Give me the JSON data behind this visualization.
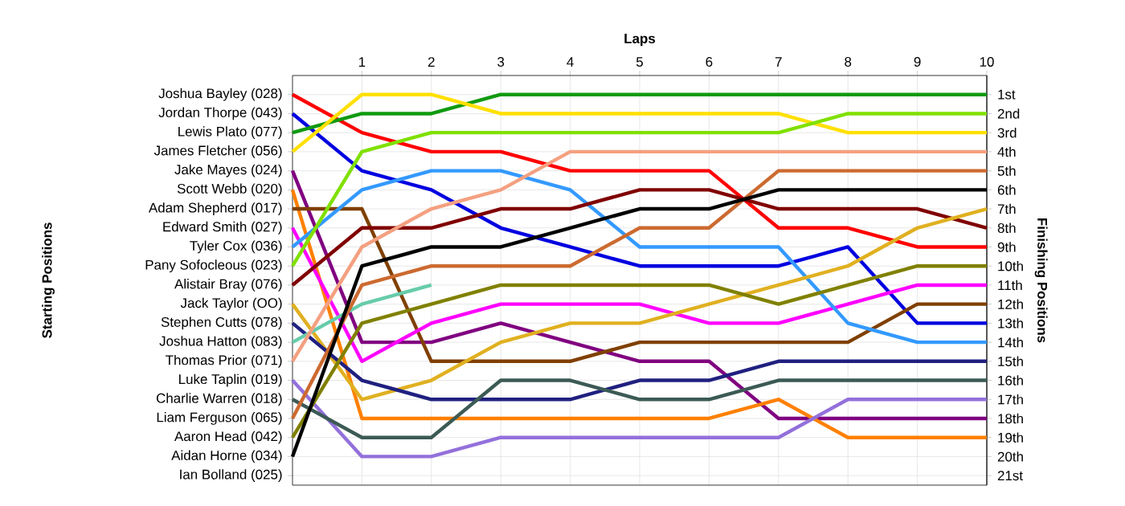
{
  "chart_data": {
    "type": "line",
    "xlabel": "Laps",
    "y2label": "Finishing Positions",
    "x": [
      0,
      1,
      2,
      3,
      4,
      5,
      6,
      7,
      8,
      9,
      10
    ],
    "xlim": [
      0,
      10
    ],
    "xticks": [
      1,
      2,
      3,
      4,
      5,
      6,
      7,
      8,
      9,
      10
    ],
    "y2lim": [
      21.5,
      0
    ],
    "y2ticks": [
      {
        "value": 1,
        "label": "1st"
      },
      {
        "value": 2,
        "label": "2nd"
      },
      {
        "value": 3,
        "label": "3rd"
      },
      {
        "value": 4,
        "label": "4th"
      },
      {
        "value": 5,
        "label": "5th"
      },
      {
        "value": 6,
        "label": "6th"
      },
      {
        "value": 7,
        "label": "7th"
      },
      {
        "value": 8,
        "label": "8th"
      },
      {
        "value": 9,
        "label": "9th"
      },
      {
        "value": 10,
        "label": "10th"
      },
      {
        "value": 11,
        "label": "11th"
      },
      {
        "value": 12,
        "label": "12th"
      },
      {
        "value": 13,
        "label": "13th"
      },
      {
        "value": 14,
        "label": "14th"
      },
      {
        "value": 15,
        "label": "15th"
      },
      {
        "value": 16,
        "label": "16th"
      },
      {
        "value": 17,
        "label": "17th"
      },
      {
        "value": 18,
        "label": "18th"
      },
      {
        "value": 19,
        "label": "19th"
      },
      {
        "value": 20,
        "label": "20th"
      },
      {
        "value": 21,
        "label": "21st"
      }
    ],
    "annotations": [
      "Starting Positions",
      "Ian Bolland (025)"
    ],
    "grid": true,
    "line_style": "solid",
    "series": [
      {
        "name": "Joshua Bayley (028)",
        "axis": "y2",
        "color": "#ff0000",
        "values": [
          1,
          3,
          4,
          4,
          5,
          5,
          5,
          8,
          8,
          9,
          9
        ]
      },
      {
        "name": "Jordan Thorpe (043)",
        "axis": "y2",
        "color": "#0000e0",
        "values": [
          2,
          5,
          6,
          8,
          9,
          10,
          10,
          10,
          9,
          13,
          13
        ]
      },
      {
        "name": "Lewis Plato (077)",
        "axis": "y2",
        "color": "#109a10",
        "values": [
          3,
          2,
          2,
          1,
          1,
          1,
          1,
          1,
          1,
          1,
          1
        ]
      },
      {
        "name": "James Fletcher (056)",
        "axis": "y2",
        "color": "#ffe000",
        "values": [
          4,
          1,
          1,
          2,
          2,
          2,
          2,
          2,
          3,
          3,
          3
        ]
      },
      {
        "name": "Jake Mayes (024)",
        "axis": "y2",
        "color": "#800080",
        "values": [
          5,
          14,
          14,
          13,
          14,
          15,
          15,
          18,
          18,
          18,
          18
        ]
      },
      {
        "name": "Scott Webb (020)",
        "axis": "y2",
        "color": "#ff8000",
        "values": [
          6,
          18,
          18,
          18,
          18,
          18,
          18,
          17,
          19,
          19,
          19
        ]
      },
      {
        "name": "Adam Shepherd (017)",
        "axis": "y2",
        "color": "#804000",
        "values": [
          7,
          7,
          15,
          15,
          15,
          14,
          14,
          14,
          14,
          12,
          12
        ]
      },
      {
        "name": "Edward Smith (027)",
        "axis": "y2",
        "color": "#ff00ff",
        "values": [
          8,
          15,
          13,
          12,
          12,
          12,
          13,
          13,
          12,
          11,
          11
        ]
      },
      {
        "name": "Tyler Cox (036)",
        "axis": "y2",
        "color": "#3399ff",
        "values": [
          9,
          6,
          5,
          5,
          6,
          9,
          9,
          9,
          13,
          14,
          14
        ]
      },
      {
        "name": "Pany Sofocleous (023)",
        "axis": "y2",
        "color": "#80e000",
        "values": [
          10,
          4,
          3,
          3,
          3,
          3,
          3,
          3,
          2,
          2,
          2
        ]
      },
      {
        "name": "Alistair Bray (076)",
        "axis": "y2",
        "color": "#800000",
        "values": [
          11,
          8,
          8,
          7,
          7,
          6,
          6,
          7,
          7,
          7,
          8
        ]
      },
      {
        "name": "Jack Taylor (OO)",
        "axis": "y2",
        "color": "#e0b020",
        "values": [
          12,
          17,
          16,
          14,
          13,
          13,
          12,
          11,
          10,
          8,
          7
        ]
      },
      {
        "name": "Stephen Cutts (078)",
        "axis": "y2",
        "color": "#202080",
        "values": [
          13,
          16,
          17,
          17,
          17,
          16,
          16,
          15,
          15,
          15,
          15
        ]
      },
      {
        "name": "Joshua Hatton (083)",
        "axis": "y2",
        "color": "#66ccaa",
        "values": [
          14,
          12,
          11,
          null,
          null,
          null,
          null,
          null,
          null,
          null,
          null
        ]
      },
      {
        "name": "Thomas Prior (071)",
        "axis": "y2",
        "color": "#f4a080",
        "values": [
          15,
          9,
          7,
          6,
          4,
          4,
          4,
          4,
          4,
          4,
          4
        ]
      },
      {
        "name": "Luke Taplin (019)",
        "axis": "y2",
        "color": "#9370db",
        "values": [
          16,
          20,
          20,
          19,
          19,
          19,
          19,
          19,
          17,
          17,
          17
        ]
      },
      {
        "name": "Charlie Warren (018)",
        "axis": "y2",
        "color": "#3c5a55",
        "values": [
          17,
          19,
          19,
          16,
          16,
          17,
          17,
          16,
          16,
          16,
          16
        ]
      },
      {
        "name": "Liam Ferguson (065)",
        "axis": "y2",
        "color": "#cc6a30",
        "values": [
          18,
          11,
          10,
          10,
          10,
          8,
          8,
          5,
          5,
          5,
          5
        ]
      },
      {
        "name": "Aaron Head (042)",
        "axis": "y2",
        "color": "#808000",
        "values": [
          19,
          13,
          12,
          11,
          11,
          11,
          11,
          12,
          11,
          10,
          10
        ]
      },
      {
        "name": "Aidan Horne (034)",
        "axis": "y2",
        "color": "#000000",
        "values": [
          20,
          10,
          9,
          9,
          8,
          7,
          7,
          6,
          6,
          6,
          6
        ]
      }
    ]
  }
}
